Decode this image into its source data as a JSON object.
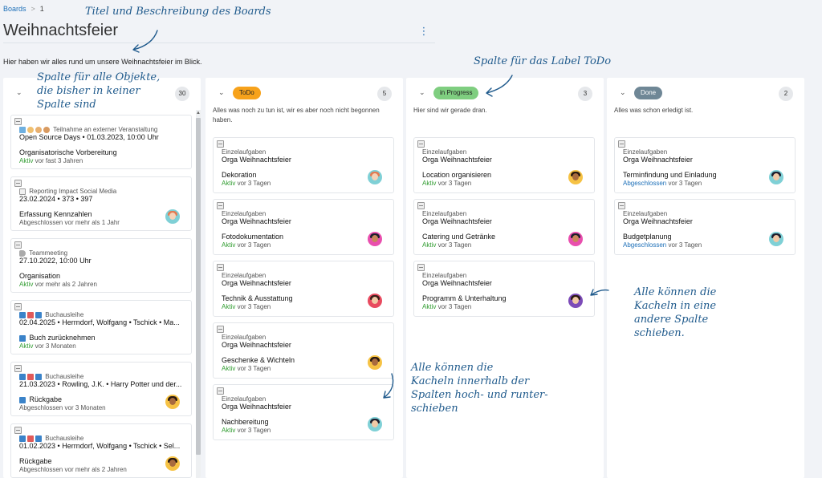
{
  "breadcrumb": {
    "root": "Boards",
    "separator": ">",
    "current": "1"
  },
  "board": {
    "title": "Weihnachtsfeier",
    "description": "Hier haben wir alles rund um unsere Weihnachtsfeier im Blick.",
    "menu_icon": "kebab-menu-icon"
  },
  "columns": [
    {
      "label": "",
      "label_color": "",
      "count": "30",
      "description": "",
      "cards": [
        {
          "type": "Teilnahme an externer Veranstaltung",
          "object": "Open Source Days • 01.03.2023, 10:00 Uhr",
          "task": "Organisatorische Vorbereitung",
          "status": "Aktiv",
          "status_suffix": " vor fast 3 Jahren",
          "status_kind": "aktiv"
        },
        {
          "type": "Reporting Impact Social Media",
          "object": "23.02.2024 • 373 • 397",
          "task": "Erfassung Kennzahlen",
          "status": "Abgeschlossen",
          "status_suffix": " vor mehr als 1 Jahr",
          "status_kind": "plain"
        },
        {
          "type": "Teammeeting",
          "object": "27.10.2022, 10:00 Uhr",
          "task": "Organisation",
          "status": "Aktiv",
          "status_suffix": " vor mehr als 2 Jahren",
          "status_kind": "aktiv"
        },
        {
          "type": "Buchausleihe",
          "object": "02.04.2025 • Herrndorf, Wolfgang • Tschick • Ma...",
          "task": "Buch zurücknehmen",
          "status": "Aktiv",
          "status_suffix": " vor 3 Monaten",
          "status_kind": "aktiv"
        },
        {
          "type": "Buchausleihe",
          "object": "21.03.2023 • Rowling, J.K. • Harry Potter und der...",
          "task": "Rückgabe",
          "status": "Abgeschlossen",
          "status_suffix": " vor 3 Monaten",
          "status_kind": "plain"
        },
        {
          "type": "Buchausleihe",
          "object": "01.02.2023 • Herrndorf, Wolfgang • Tschick • Sel...",
          "task": "Rückgabe",
          "status": "Abgeschlossen",
          "status_suffix": " vor mehr als 2 Jahren",
          "status_kind": "plain"
        }
      ]
    },
    {
      "label": "ToDo",
      "label_color": "#f7a21b",
      "count": "5",
      "description": "Alles was noch zu tun ist, wir es aber noch nicht begonnen haben.",
      "cards": [
        {
          "type": "Einzelaufgaben",
          "object": "Orga Weihnachtsfeier",
          "task": "Dekoration",
          "status": "Aktiv",
          "status_suffix": " vor 3 Tagen",
          "status_kind": "aktiv"
        },
        {
          "type": "Einzelaufgaben",
          "object": "Orga Weihnachtsfeier",
          "task": "Fotodokumentation",
          "status": "Aktiv",
          "status_suffix": " vor 3 Tagen",
          "status_kind": "aktiv"
        },
        {
          "type": "Einzelaufgaben",
          "object": "Orga Weihnachtsfeier",
          "task": "Technik & Ausstattung",
          "status": "Aktiv",
          "status_suffix": " vor 3 Tagen",
          "status_kind": "aktiv"
        },
        {
          "type": "Einzelaufgaben",
          "object": "Orga Weihnachtsfeier",
          "task": "Geschenke & Wichteln",
          "status": "Aktiv",
          "status_suffix": " vor 3 Tagen",
          "status_kind": "aktiv"
        },
        {
          "type": "Einzelaufgaben",
          "object": "Orga Weihnachtsfeier",
          "task": "Nachbereitung",
          "status": "Aktiv",
          "status_suffix": " vor 3 Tagen",
          "status_kind": "aktiv"
        }
      ]
    },
    {
      "label": "in Progress",
      "label_color": "#7fce80",
      "count": "3",
      "description": "Hier sind wir gerade dran.",
      "cards": [
        {
          "type": "Einzelaufgaben",
          "object": "Orga Weihnachtsfeier",
          "task": "Location organisieren",
          "status": "Aktiv",
          "status_suffix": " vor 3 Tagen",
          "status_kind": "aktiv"
        },
        {
          "type": "Einzelaufgaben",
          "object": "Orga Weihnachtsfeier",
          "task": "Catering und Getränke",
          "status": "Aktiv",
          "status_suffix": " vor 3 Tagen",
          "status_kind": "aktiv"
        },
        {
          "type": "Einzelaufgaben",
          "object": "Orga Weihnachtsfeier",
          "task": "Programm & Unterhaltung",
          "status": "Aktiv",
          "status_suffix": " vor 3 Tagen",
          "status_kind": "aktiv"
        }
      ]
    },
    {
      "label": "Done",
      "label_color": "#6f8796",
      "count": "2",
      "description": "Alles was schon erledigt ist.",
      "cards": [
        {
          "type": "Einzelaufgaben",
          "object": "Orga Weihnachtsfeier",
          "task": "Terminfindung und Einladung",
          "status": "Abgeschlossen",
          "status_suffix": " vor 3 Tagen",
          "status_kind": "done"
        },
        {
          "type": "Einzelaufgaben",
          "object": "Orga Weihnachtsfeier",
          "task": "Budgetplanung",
          "status": "Abgeschlossen",
          "status_suffix": " vor 3 Tagen",
          "status_kind": "done"
        }
      ]
    }
  ],
  "annotations": {
    "title": "Titel und Beschreibung des Boards",
    "unlabeled_l1": "Spalte für alle Objekte,",
    "unlabeled_l2": "die bisher in keiner",
    "unlabeled_l3": "Spalte sind",
    "todo": "Spalte für das Label ToDo",
    "vertical_l1": "Alle können die",
    "vertical_l2": "Kacheln innerhalb der",
    "vertical_l3": "Spalten hoch- und runter-",
    "vertical_l4": "schieben",
    "horizontal_l1": "Alle können die",
    "horizontal_l2": "Kacheln in eine",
    "horizontal_l3": "andere Spalte",
    "horizontal_l4": "schieben."
  },
  "colors": {
    "accent": "#1c6fb8",
    "aktiv": "#2e9b2e",
    "annotation": "#1f5a8c"
  }
}
